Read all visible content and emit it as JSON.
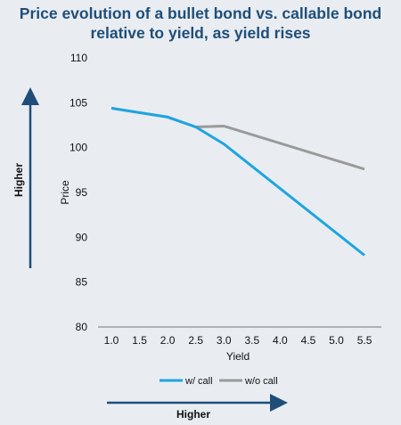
{
  "chart_data": {
    "type": "line",
    "title_lines": [
      "Price evolution of a bullet bond vs. callable bond",
      "relative to yield, as yield rises"
    ],
    "xlabel": "Yield",
    "ylabel": "Price",
    "x": [
      1.0,
      1.5,
      2.0,
      2.5,
      3.0,
      3.5,
      4.0,
      4.5,
      5.0,
      5.5
    ],
    "x_tick_labels": [
      "1.0",
      "1.5",
      "2.0",
      "2.5",
      "3.0",
      "3.5",
      "4.0",
      "4.5",
      "5.0",
      "5.5"
    ],
    "ylim": [
      80,
      110
    ],
    "y_ticks": [
      "80",
      "85",
      "90",
      "95",
      "100",
      "105",
      "110"
    ],
    "grid": false,
    "legend_position": "bottom",
    "series": [
      {
        "name": "w/ call",
        "color": "#1ea5e0",
        "x": [
          1.0,
          2.0,
          2.5,
          3.0,
          5.5
        ],
        "values": [
          104.4,
          103.4,
          102.3,
          100.4,
          88.0
        ]
      },
      {
        "name": "w/o call",
        "color": "#9a9a9a",
        "x": [
          1.0,
          2.0,
          2.5,
          3.0,
          5.5
        ],
        "values": [
          104.4,
          103.4,
          102.3,
          102.4,
          97.6
        ]
      }
    ],
    "annotations": {
      "vertical_arrow_label": "Higher",
      "horizontal_arrow_label": "Higher",
      "arrow_color": "#1f4e79"
    }
  }
}
